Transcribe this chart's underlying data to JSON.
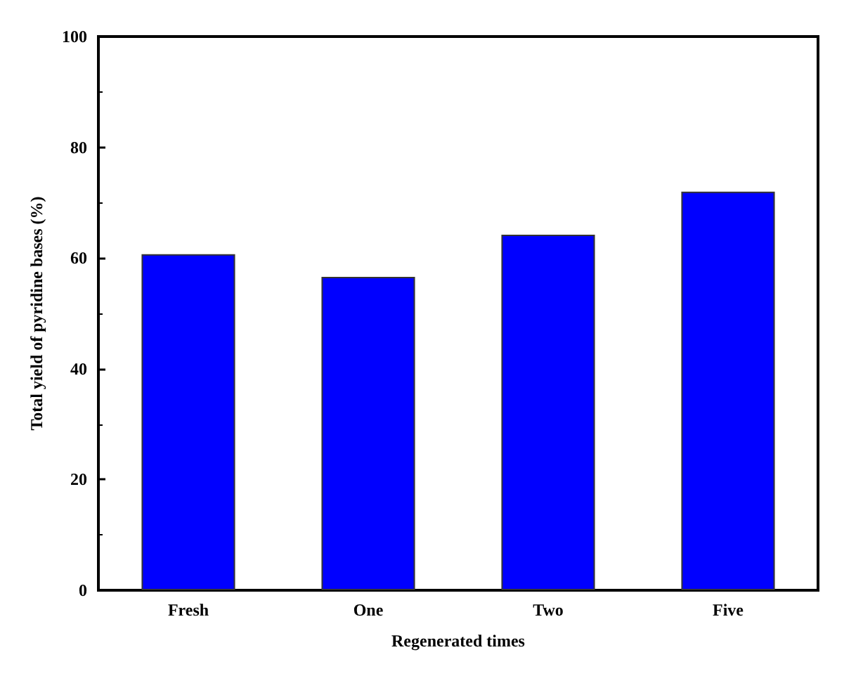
{
  "chart_data": {
    "type": "bar",
    "xlabel": "Regenerated times",
    "ylabel": "Total yield of pyridine bases (%)",
    "categories": [
      "Fresh",
      "One",
      "Two",
      "Five"
    ],
    "values": [
      60.7,
      56.6,
      64.2,
      72
    ],
    "color": "#0000ff",
    "ylim": [
      0,
      100
    ],
    "yticks": [
      0,
      20,
      40,
      60,
      80,
      100
    ]
  }
}
